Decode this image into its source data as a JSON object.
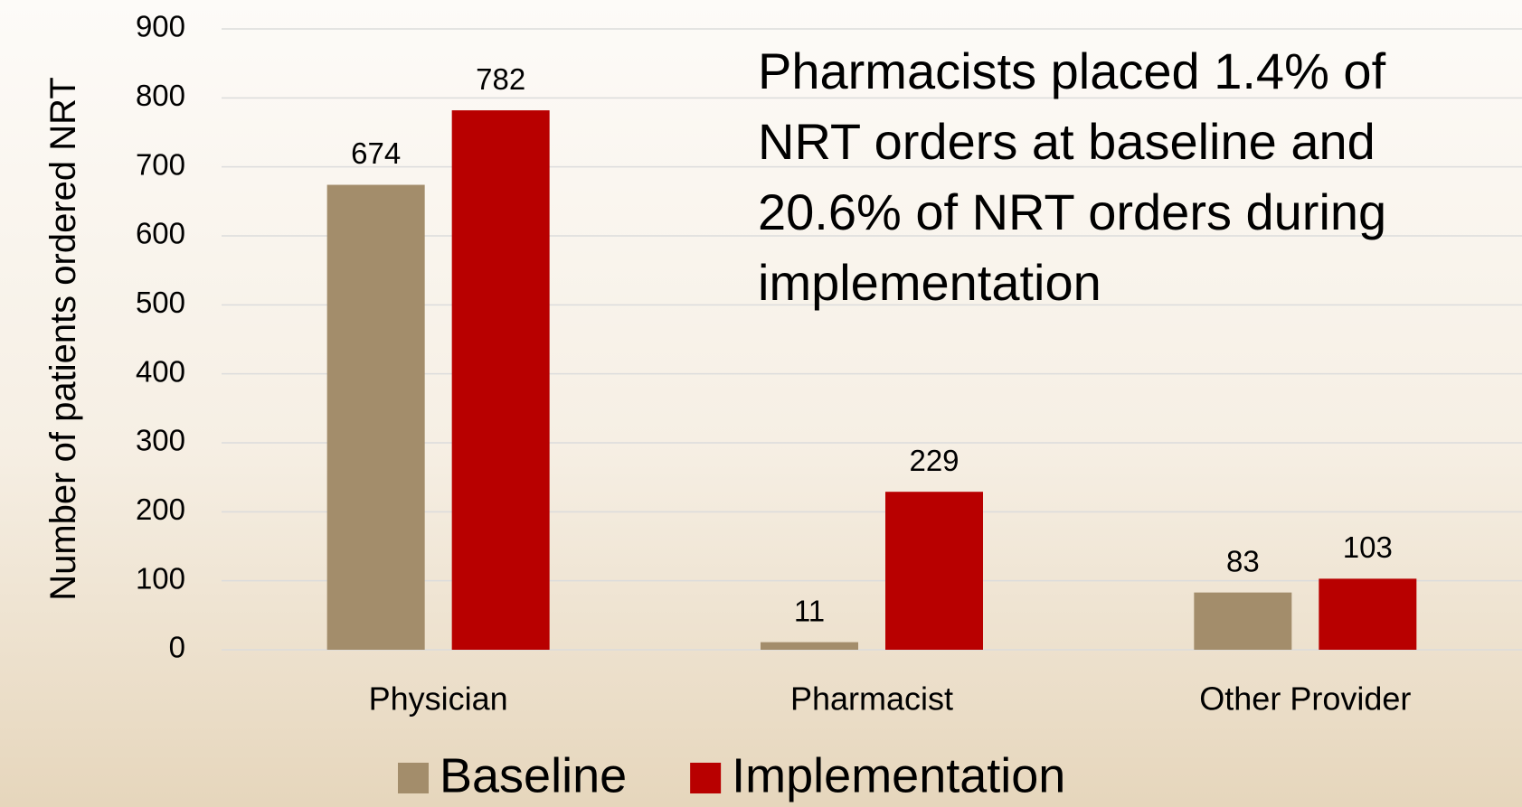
{
  "chart_data": {
    "type": "bar",
    "ylabel": "Number of patients ordered NRT",
    "annotation": "Pharmacists placed 1.4% of NRT orders at baseline and 20.6% of NRT orders during implementation",
    "categories": [
      "Physician",
      "Pharmacist",
      "Other Provider"
    ],
    "series": [
      {
        "name": "Baseline",
        "color": "#a38d6b",
        "values": [
          674,
          11,
          83
        ]
      },
      {
        "name": "Implementation",
        "color": "#b80000",
        "values": [
          782,
          229,
          103
        ]
      }
    ],
    "ylim": [
      0,
      900
    ],
    "yticks": [
      0,
      100,
      200,
      300,
      400,
      500,
      600,
      700,
      800,
      900
    ],
    "grid": true
  }
}
